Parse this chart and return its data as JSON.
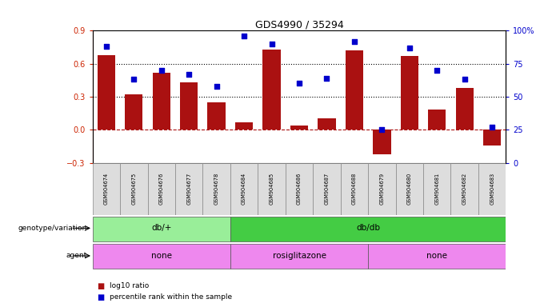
{
  "title": "GDS4990 / 35294",
  "samples": [
    "GSM904674",
    "GSM904675",
    "GSM904676",
    "GSM904677",
    "GSM904678",
    "GSM904684",
    "GSM904685",
    "GSM904686",
    "GSM904687",
    "GSM904688",
    "GSM904679",
    "GSM904680",
    "GSM904681",
    "GSM904682",
    "GSM904683"
  ],
  "log10_ratio": [
    0.68,
    0.32,
    0.52,
    0.43,
    0.25,
    0.07,
    0.73,
    0.04,
    0.1,
    0.72,
    -0.22,
    0.67,
    0.18,
    0.38,
    -0.14
  ],
  "percentile": [
    88,
    63,
    70,
    67,
    58,
    96,
    90,
    60,
    64,
    92,
    25,
    87,
    70,
    63,
    27
  ],
  "bar_color": "#AA1111",
  "dot_color": "#0000CC",
  "ylim_left": [
    -0.3,
    0.9
  ],
  "ylim_right": [
    0,
    100
  ],
  "yticks_left": [
    -0.3,
    0.0,
    0.3,
    0.6,
    0.9
  ],
  "yticks_right": [
    0,
    25,
    50,
    75,
    100
  ],
  "hlines": [
    0.3,
    0.6
  ],
  "genotype_groups": [
    {
      "label": "db/+",
      "start": 0,
      "end": 5,
      "color": "#99EE99"
    },
    {
      "label": "db/db",
      "start": 5,
      "end": 15,
      "color": "#44CC44"
    }
  ],
  "agent_groups": [
    {
      "label": "none",
      "start": 0,
      "end": 5,
      "color": "#EE88EE"
    },
    {
      "label": "rosiglitazone",
      "start": 5,
      "end": 10,
      "color": "#EE88EE"
    },
    {
      "label": "none",
      "start": 10,
      "end": 15,
      "color": "#EE88EE"
    }
  ],
  "legend_bar_label": "log10 ratio",
  "legend_dot_label": "percentile rank within the sample",
  "bg_color": "#FFFFFF",
  "tick_label_color_left": "#CC2200",
  "tick_label_color_right": "#0000CC"
}
